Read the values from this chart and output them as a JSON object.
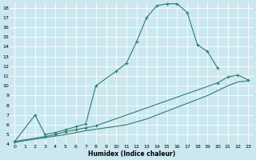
{
  "xlabel": "Humidex (Indice chaleur)",
  "background_color": "#cbe8f0",
  "grid_color": "#ffffff",
  "line_color": "#2d7d6e",
  "xlim": [
    -0.5,
    23.5
  ],
  "ylim": [
    4,
    18.5
  ],
  "xticks": [
    0,
    1,
    2,
    3,
    4,
    5,
    6,
    7,
    8,
    9,
    10,
    11,
    12,
    13,
    14,
    15,
    16,
    17,
    18,
    19,
    20,
    21,
    22,
    23
  ],
  "yticks": [
    4,
    5,
    6,
    7,
    8,
    9,
    10,
    11,
    12,
    13,
    14,
    15,
    16,
    17,
    18
  ],
  "curve1_x": [
    0,
    2,
    3,
    4,
    5,
    6,
    7,
    8,
    10,
    11,
    12,
    13,
    14,
    15,
    16,
    17,
    18,
    19,
    20
  ],
  "curve1_y": [
    4.3,
    7.0,
    5.0,
    5.2,
    5.5,
    5.8,
    6.1,
    10.0,
    11.5,
    12.3,
    14.5,
    17.0,
    18.2,
    18.4,
    18.4,
    17.5,
    14.2,
    13.5,
    11.8
  ],
  "curve2_x": [
    0,
    3,
    4,
    5,
    6,
    7,
    8,
    20,
    21,
    22,
    23
  ],
  "curve2_y": [
    4.3,
    4.8,
    5.0,
    5.3,
    5.5,
    5.7,
    5.9,
    10.3,
    10.9,
    11.1,
    10.6
  ],
  "curve3_x": [
    0,
    3,
    4,
    5,
    6,
    7,
    8,
    9,
    10,
    11,
    12,
    13,
    14,
    15,
    16,
    17,
    18,
    19,
    20,
    21,
    22,
    23
  ],
  "curve3_y": [
    4.2,
    4.7,
    4.85,
    5.0,
    5.2,
    5.4,
    5.55,
    5.7,
    5.85,
    6.0,
    6.3,
    6.6,
    7.0,
    7.4,
    7.8,
    8.2,
    8.6,
    9.0,
    9.5,
    10.0,
    10.4,
    10.5
  ]
}
